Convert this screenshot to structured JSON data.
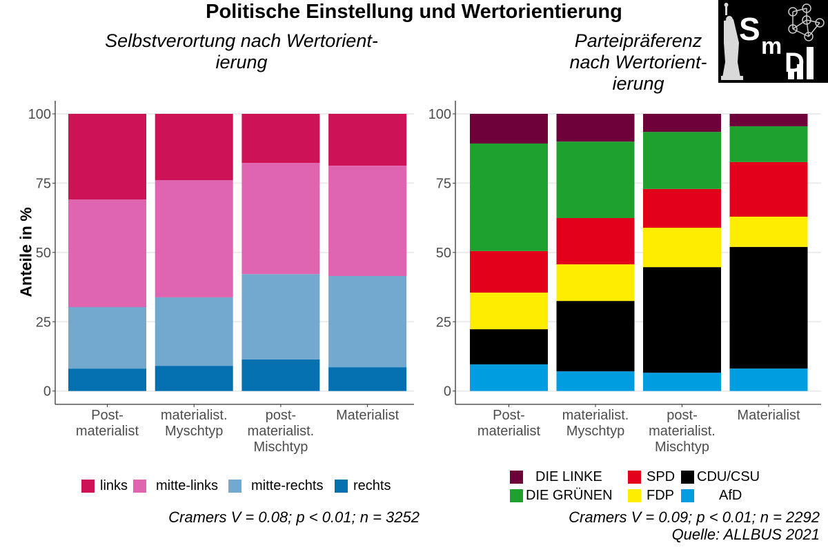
{
  "title": "Politische Einstellung und Wertorientierung",
  "logo": {
    "text_s": "S",
    "text_m": "m",
    "text_d": "D",
    "name": "smd-logo"
  },
  "chart_data": [
    {
      "type": "bar",
      "stacked": true,
      "title": "Selbstverortung nach Wertorient-\nierung",
      "title_lines": [
        "Selbstverortung nach Wertorient-",
        "ierung"
      ],
      "xlabel": "",
      "ylabel": "Anteile in %",
      "ylim": [
        0,
        100
      ],
      "yticks": [
        0,
        25,
        50,
        75,
        100
      ],
      "grid": true,
      "categories": [
        "Post-\nmaterialist",
        "materialist.\nMyschtyp",
        "post-\nmaterialist.\nMischtyp",
        "Materialist"
      ],
      "series": [
        {
          "name": "rechts",
          "color": "#0570b0",
          "values": [
            8.1,
            9.1,
            11.4,
            8.6
          ]
        },
        {
          "name": "mitte-rechts",
          "color": "#74a9cf",
          "values": [
            22.2,
            24.7,
            30.8,
            32.9
          ]
        },
        {
          "name": "mitte-links",
          "color": "#df65b0",
          "values": [
            38.8,
            42.3,
            40.1,
            39.8
          ]
        },
        {
          "name": "links",
          "color": "#ce1256",
          "values": [
            30.9,
            23.9,
            17.7,
            18.7
          ]
        }
      ],
      "legend": {
        "position": "bottom",
        "order": [
          "links",
          "mitte-links",
          "mitte-rechts",
          "rechts"
        ]
      },
      "caption": "Cramers V = 0.08; p < 0.01; n = 3252"
    },
    {
      "type": "bar",
      "stacked": true,
      "title_lines": [
        "Parteipräferenz",
        "nach Wertorient-",
        "ierung"
      ],
      "xlabel": "",
      "ylabel": "",
      "ylim": [
        0,
        100
      ],
      "yticks": [
        0,
        25,
        50,
        75,
        100
      ],
      "grid": true,
      "categories": [
        "Post-\nmaterialist",
        "materialist.\nMyschtyp",
        "post-\nmaterialist.\nMischtyp",
        "Materialist"
      ],
      "series": [
        {
          "name": "AfD",
          "color": "#009ee0",
          "values": [
            9.6,
            7.1,
            6.6,
            8.1
          ]
        },
        {
          "name": "CDU/CSU",
          "color": "#000000",
          "values": [
            12.7,
            25.4,
            38.1,
            43.9
          ]
        },
        {
          "name": "FDP",
          "color": "#ffed00",
          "values": [
            13.2,
            13.2,
            14.2,
            10.9
          ]
        },
        {
          "name": "SPD",
          "color": "#e3001b",
          "values": [
            15.0,
            16.7,
            14.0,
            19.7
          ]
        },
        {
          "name": "DIE GRÜNEN",
          "color": "#1fa12f",
          "values": [
            38.8,
            27.6,
            20.6,
            12.9
          ]
        },
        {
          "name": "DIE LINKE",
          "color": "#6e003a",
          "values": [
            10.7,
            10.0,
            6.5,
            4.5
          ]
        }
      ],
      "legend": {
        "position": "bottom",
        "rows": [
          [
            "DIE LINKE",
            "SPD",
            "CDU/CSU"
          ],
          [
            "DIE GRÜNEN",
            "FDP",
            "AfD"
          ]
        ]
      },
      "caption": "Cramers V = 0.09; p < 0.01; n = 2292",
      "source": "Quelle: ALLBUS 2021"
    }
  ]
}
